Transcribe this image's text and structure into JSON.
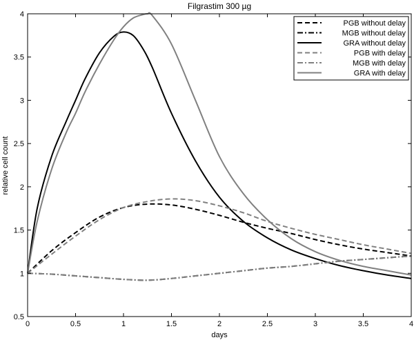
{
  "chart_data": {
    "type": "line",
    "title": "Filgrastim 300 µg",
    "xlabel": "days",
    "ylabel": "relative cell count",
    "xlim": [
      0,
      4
    ],
    "ylim": [
      0.5,
      4
    ],
    "xticks": [
      0,
      0.5,
      1,
      1.5,
      2,
      2.5,
      3,
      3.5,
      4
    ],
    "xtick_labels": [
      "0",
      "0.5",
      "1",
      "1.5",
      "2",
      "2.5",
      "3",
      "3.5",
      "4"
    ],
    "yticks": [
      0.5,
      1,
      1.5,
      2,
      2.5,
      3,
      3.5,
      4
    ],
    "ytick_labels": [
      "0.5",
      "1",
      "1.5",
      "2",
      "2.5",
      "3",
      "3.5",
      "4"
    ],
    "grid": false,
    "legend_position": "top-right",
    "series": [
      {
        "name": "PGB without delay",
        "color": "#000000",
        "dash": "dashed",
        "x": [
          0,
          0.25,
          0.5,
          0.75,
          1.0,
          1.25,
          1.5,
          1.75,
          2.0,
          2.25,
          2.5,
          2.75,
          3.0,
          3.25,
          3.5,
          3.75,
          4.0
        ],
        "y": [
          1.0,
          1.26,
          1.47,
          1.65,
          1.76,
          1.8,
          1.79,
          1.74,
          1.67,
          1.59,
          1.52,
          1.46,
          1.39,
          1.33,
          1.28,
          1.24,
          1.2
        ]
      },
      {
        "name": "MGB without delay",
        "color": "#000000",
        "dash": "dashdot",
        "x": [
          0,
          0.25,
          0.5,
          0.75,
          1.0,
          1.25,
          1.5,
          1.75,
          2.0,
          2.25,
          2.5,
          2.75,
          3.0,
          3.25,
          3.5,
          3.75,
          4.0
        ],
        "y": [
          1.0,
          0.99,
          0.97,
          0.95,
          0.93,
          0.92,
          0.94,
          0.97,
          1.0,
          1.03,
          1.06,
          1.08,
          1.11,
          1.14,
          1.16,
          1.18,
          1.2
        ]
      },
      {
        "name": "GRA without delay",
        "color": "#000000",
        "dash": "solid",
        "x": [
          0,
          0.1,
          0.25,
          0.4,
          0.5,
          0.6,
          0.75,
          0.9,
          1.0,
          1.1,
          1.2,
          1.3,
          1.5,
          1.75,
          2.0,
          2.25,
          2.5,
          2.75,
          3.0,
          3.25,
          3.5,
          3.75,
          4.0
        ],
        "y": [
          1.0,
          1.75,
          2.35,
          2.75,
          3.0,
          3.25,
          3.55,
          3.74,
          3.79,
          3.75,
          3.6,
          3.38,
          2.85,
          2.3,
          1.88,
          1.6,
          1.41,
          1.27,
          1.17,
          1.09,
          1.03,
          0.98,
          0.94
        ]
      },
      {
        "name": "PGB with delay",
        "color": "#808080",
        "dash": "dashed",
        "x": [
          0,
          0.25,
          0.5,
          0.75,
          1.0,
          1.25,
          1.5,
          1.75,
          2.0,
          2.25,
          2.5,
          2.75,
          3.0,
          3.25,
          3.5,
          3.75,
          4.0
        ],
        "y": [
          1.0,
          1.22,
          1.43,
          1.62,
          1.76,
          1.83,
          1.86,
          1.84,
          1.78,
          1.7,
          1.6,
          1.52,
          1.45,
          1.39,
          1.33,
          1.28,
          1.23
        ]
      },
      {
        "name": "MGB with delay",
        "color": "#808080",
        "dash": "dashdot",
        "x": [
          0,
          0.25,
          0.5,
          0.75,
          1.0,
          1.25,
          1.5,
          1.75,
          2.0,
          2.25,
          2.5,
          2.75,
          3.0,
          3.25,
          3.5,
          3.75,
          4.0
        ],
        "y": [
          1.0,
          0.99,
          0.97,
          0.95,
          0.93,
          0.92,
          0.94,
          0.97,
          1.0,
          1.03,
          1.06,
          1.08,
          1.11,
          1.14,
          1.16,
          1.18,
          1.2
        ]
      },
      {
        "name": "GRA with delay",
        "color": "#808080",
        "dash": "solid",
        "x": [
          0,
          0.1,
          0.25,
          0.4,
          0.5,
          0.6,
          0.75,
          0.9,
          1.0,
          1.1,
          1.2,
          1.25,
          1.3,
          1.5,
          1.75,
          2.0,
          2.25,
          2.5,
          2.75,
          3.0,
          3.25,
          3.5,
          3.75,
          4.0
        ],
        "y": [
          1.0,
          1.6,
          2.2,
          2.62,
          2.85,
          3.1,
          3.42,
          3.7,
          3.85,
          3.95,
          3.99,
          4.0,
          3.98,
          3.65,
          3.0,
          2.35,
          1.92,
          1.62,
          1.4,
          1.25,
          1.15,
          1.08,
          1.03,
          0.98
        ]
      }
    ]
  }
}
